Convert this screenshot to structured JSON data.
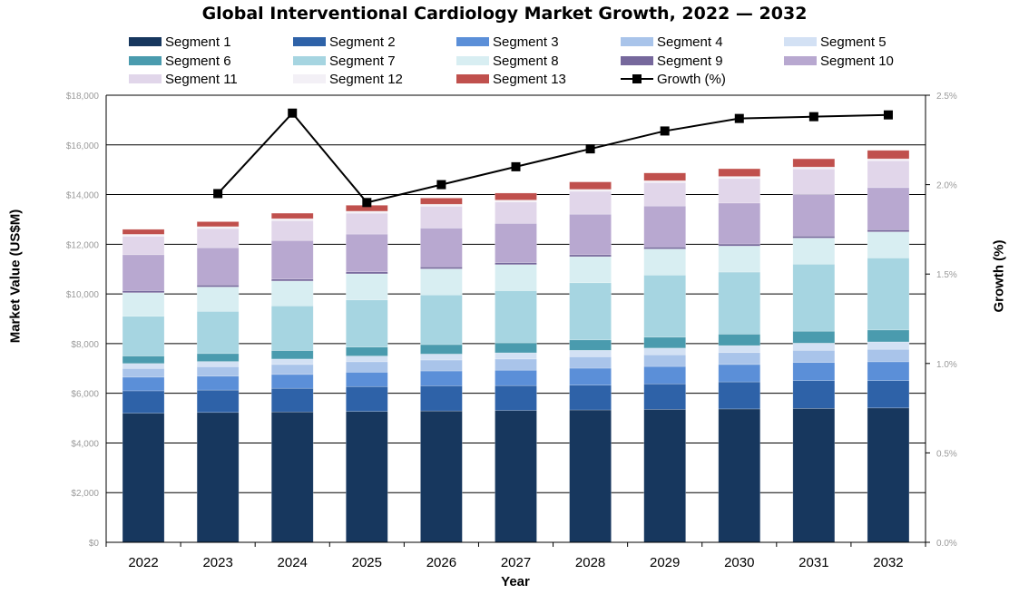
{
  "chart_data": {
    "type": "bar",
    "stacked": true,
    "title": "Global Interventional Cardiology Market Growth, 2022 — 2032",
    "xlabel": "Year",
    "ylabel": "Market Value (US$M)",
    "y2label": "Growth (%)",
    "categories": [
      "2022",
      "2023",
      "2024",
      "2025",
      "2026",
      "2027",
      "2028",
      "2029",
      "2030",
      "2031",
      "2032"
    ],
    "ylim": [
      0,
      18000
    ],
    "y2lim": [
      0,
      2.5
    ],
    "yticks": [
      "$0",
      "$2,000",
      "$4,000",
      "$6,000",
      "$8,000",
      "$10,000",
      "$12,000",
      "$14,000",
      "$16,000",
      "$18,000"
    ],
    "y2ticks": [
      "0.0%",
      "0.5%",
      "1.0%",
      "1.5%",
      "2.0%",
      "2.5%"
    ],
    "grid": true,
    "legend_position": "top",
    "series": [
      {
        "name": "Segment 1",
        "color": "#17375e",
        "values": [
          5200,
          5230,
          5250,
          5270,
          5290,
          5310,
          5330,
          5350,
          5370,
          5390,
          5410
        ]
      },
      {
        "name": "Segment 2",
        "color": "#2e62a8",
        "values": [
          900,
          900,
          950,
          1000,
          1010,
          1000,
          1000,
          1030,
          1090,
          1120,
          1100
        ]
      },
      {
        "name": "Segment 3",
        "color": "#5b8fd8",
        "values": [
          550,
          560,
          560,
          580,
          600,
          620,
          680,
          700,
          700,
          730,
          760
        ]
      },
      {
        "name": "Segment 4",
        "color": "#a9c4ea",
        "values": [
          350,
          380,
          400,
          420,
          440,
          450,
          460,
          470,
          480,
          490,
          500
        ]
      },
      {
        "name": "Segment 5",
        "color": "#d3e1f4",
        "values": [
          200,
          210,
          220,
          230,
          240,
          250,
          260,
          270,
          280,
          290,
          300
        ]
      },
      {
        "name": "Segment 6",
        "color": "#4a9bae",
        "values": [
          300,
          320,
          340,
          360,
          380,
          400,
          420,
          440,
          460,
          480,
          480
        ]
      },
      {
        "name": "Segment 7",
        "color": "#a6d5e1",
        "values": [
          1600,
          1700,
          1800,
          1900,
          2000,
          2100,
          2300,
          2500,
          2500,
          2700,
          2900
        ]
      },
      {
        "name": "Segment 8",
        "color": "#d8eef2",
        "values": [
          950,
          980,
          1000,
          1050,
          1050,
          1050,
          1050,
          1050,
          1050,
          1050,
          1050
        ]
      },
      {
        "name": "Segment 9",
        "color": "#76689c",
        "values": [
          80,
          80,
          80,
          80,
          80,
          80,
          80,
          80,
          80,
          80,
          80
        ]
      },
      {
        "name": "Segment 10",
        "color": "#b8a8d0",
        "values": [
          1450,
          1500,
          1550,
          1520,
          1560,
          1580,
          1630,
          1650,
          1650,
          1680,
          1700
        ]
      },
      {
        "name": "Segment 11",
        "color": "#e1d6ea",
        "values": [
          740,
          770,
          800,
          840,
          880,
          860,
          920,
          940,
          990,
          1020,
          1080
        ]
      },
      {
        "name": "Segment 12",
        "color": "#f3f0f6",
        "values": [
          80,
          80,
          80,
          80,
          80,
          80,
          80,
          80,
          80,
          80,
          80
        ]
      },
      {
        "name": "Segment 13",
        "color": "#c0504d",
        "values": [
          200,
          200,
          220,
          240,
          250,
          280,
          300,
          310,
          310,
          330,
          340
        ]
      }
    ],
    "line_series": {
      "name": "Growth (%)",
      "axis": "right",
      "color": "#000000",
      "values": [
        null,
        1.95,
        2.4,
        1.9,
        2.0,
        2.1,
        2.2,
        2.3,
        2.37,
        2.38,
        2.39
      ]
    }
  }
}
